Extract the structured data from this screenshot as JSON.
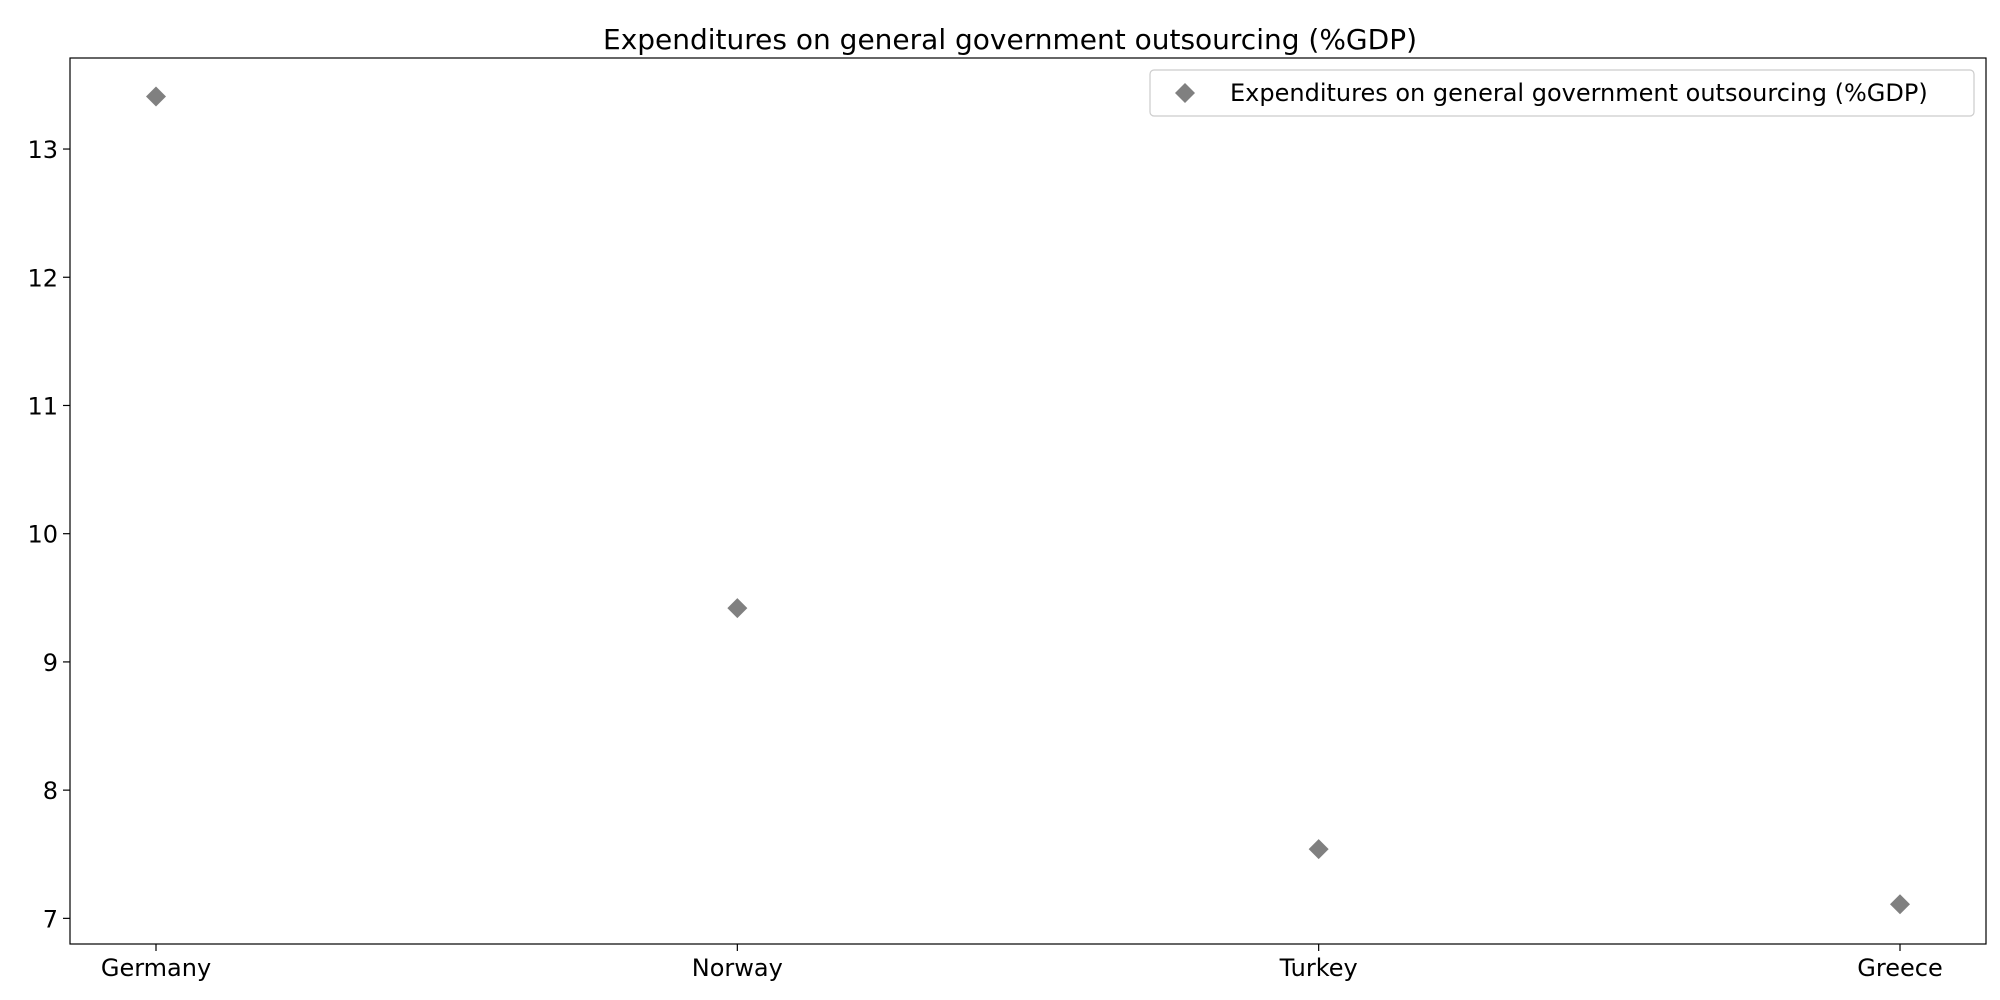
{
  "chart_data": {
    "type": "scatter",
    "title": "Expenditures on general government outsourcing (%GDP)",
    "xlabel": "",
    "ylabel": "",
    "categories": [
      "Germany",
      "Norway",
      "Turkey",
      "Greece"
    ],
    "series": [
      {
        "name": "Expenditures on general government outsourcing (%GDP)",
        "values": [
          13.41,
          9.42,
          7.54,
          7.11
        ],
        "color": "#808080",
        "marker": "diamond"
      }
    ],
    "ylim": [
      6.8,
      13.71
    ],
    "yticks": [
      7,
      8,
      9,
      10,
      11,
      12,
      13
    ],
    "grid": false,
    "legend": "top-right"
  }
}
